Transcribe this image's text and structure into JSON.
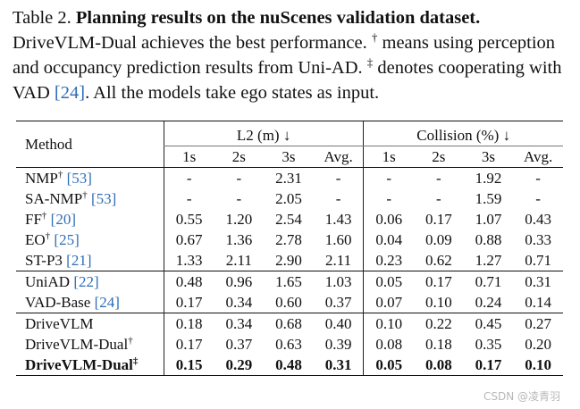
{
  "caption": {
    "label": "Table 2.",
    "title": "Planning results on the nuScenes validation dataset.",
    "text_1": "DriveVLM-Dual achieves the best performance.",
    "dagger": "†",
    "text_2": "means using perception and occupancy prediction results from Uni-AD.",
    "ddagger": "‡",
    "text_3": "denotes cooperating with VAD",
    "ref": "[24]",
    "text_4": ". All the models take ego states as input."
  },
  "table": {
    "method_header": "Method",
    "groups": [
      "L2 (m) ↓",
      "Collision (%) ↓"
    ],
    "sub_headers": [
      "1s",
      "2s",
      "3s",
      "Avg.",
      "1s",
      "2s",
      "3s",
      "Avg."
    ],
    "sections": [
      [
        {
          "name": "NMP",
          "mark": "†",
          "ref": "[53]",
          "values": [
            "-",
            "-",
            "2.31",
            "-",
            "-",
            "-",
            "1.92",
            "-"
          ]
        },
        {
          "name": "SA-NMP",
          "mark": "†",
          "ref": "[53]",
          "values": [
            "-",
            "-",
            "2.05",
            "-",
            "-",
            "-",
            "1.59",
            "-"
          ]
        },
        {
          "name": "FF",
          "mark": "†",
          "ref": "[20]",
          "values": [
            "0.55",
            "1.20",
            "2.54",
            "1.43",
            "0.06",
            "0.17",
            "1.07",
            "0.43"
          ]
        },
        {
          "name": "EO",
          "mark": "†",
          "ref": "[25]",
          "values": [
            "0.67",
            "1.36",
            "2.78",
            "1.60",
            "0.04",
            "0.09",
            "0.88",
            "0.33"
          ]
        },
        {
          "name": "ST-P3",
          "mark": "",
          "ref": "[21]",
          "values": [
            "1.33",
            "2.11",
            "2.90",
            "2.11",
            "0.23",
            "0.62",
            "1.27",
            "0.71"
          ]
        }
      ],
      [
        {
          "name": "UniAD",
          "mark": "",
          "ref": "[22]",
          "values": [
            "0.48",
            "0.96",
            "1.65",
            "1.03",
            "0.05",
            "0.17",
            "0.71",
            "0.31"
          ]
        },
        {
          "name": "VAD-Base",
          "mark": "",
          "ref": "[24]",
          "values": [
            "0.17",
            "0.34",
            "0.60",
            "0.37",
            "0.07",
            "0.10",
            "0.24",
            "0.14"
          ]
        }
      ],
      [
        {
          "name": "DriveVLM",
          "mark": "",
          "ref": "",
          "values": [
            "0.18",
            "0.34",
            "0.68",
            "0.40",
            "0.10",
            "0.22",
            "0.45",
            "0.27"
          ]
        },
        {
          "name": "DriveVLM-Dual",
          "mark": "†",
          "ref": "",
          "values": [
            "0.17",
            "0.37",
            "0.63",
            "0.39",
            "0.08",
            "0.18",
            "0.35",
            "0.20"
          ]
        },
        {
          "name": "DriveVLM-Dual",
          "mark": "‡",
          "ref": "",
          "bold": true,
          "values": [
            "0.15",
            "0.29",
            "0.48",
            "0.31",
            "0.05",
            "0.08",
            "0.17",
            "0.10"
          ]
        }
      ]
    ]
  },
  "watermark": "CSDN @凌青羽"
}
